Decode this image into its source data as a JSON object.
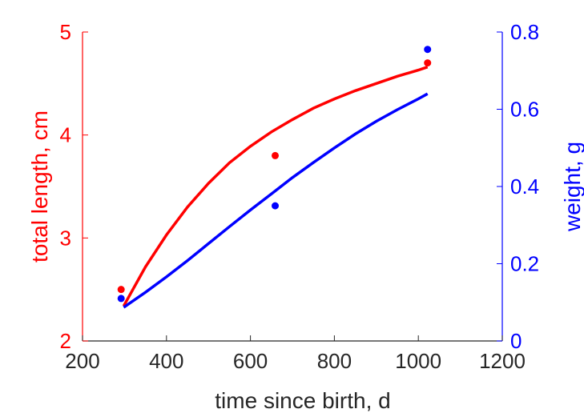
{
  "chart_data": {
    "type": "scatter",
    "xlabel": "time since birth, d",
    "ylabel_left": "total length, cm",
    "ylabel_right": "weight, g",
    "xlim": [
      200,
      1200
    ],
    "ylim_left": [
      2,
      5
    ],
    "ylim_right": [
      0,
      0.8
    ],
    "xticks": [
      "200",
      "400",
      "600",
      "800",
      "1000",
      "1200"
    ],
    "yticks_left": [
      "2",
      "3",
      "4",
      "5"
    ],
    "yticks_right": [
      "0",
      "0.2",
      "0.4",
      "0.6",
      "0.8"
    ],
    "grid": false,
    "colors": {
      "length": "#ff0000",
      "weight": "#0000ff",
      "axis": "#262626"
    },
    "series": [
      {
        "axis": "left",
        "color": "#ff0000",
        "points": {
          "x": [
            292,
            659,
            1022
          ],
          "y": [
            2.5,
            3.8,
            4.7
          ]
        },
        "fit": {
          "x": [
            298,
            350,
            400,
            450,
            500,
            550,
            600,
            650,
            700,
            750,
            800,
            850,
            900,
            950,
            1000,
            1022
          ],
          "y": [
            2.34,
            2.72,
            3.03,
            3.3,
            3.53,
            3.73,
            3.89,
            4.03,
            4.15,
            4.26,
            4.35,
            4.43,
            4.5,
            4.57,
            4.63,
            4.66
          ]
        }
      },
      {
        "axis": "right",
        "color": "#0000ff",
        "points": {
          "x": [
            292,
            659,
            1022
          ],
          "y": [
            0.11,
            0.35,
            0.755
          ]
        },
        "fit": {
          "x": [
            298,
            350,
            400,
            450,
            500,
            550,
            600,
            650,
            700,
            750,
            800,
            850,
            900,
            950,
            1000,
            1022
          ],
          "y": [
            0.087,
            0.126,
            0.166,
            0.208,
            0.252,
            0.296,
            0.339,
            0.381,
            0.423,
            0.462,
            0.5,
            0.536,
            0.569,
            0.599,
            0.627,
            0.64
          ]
        }
      }
    ]
  }
}
